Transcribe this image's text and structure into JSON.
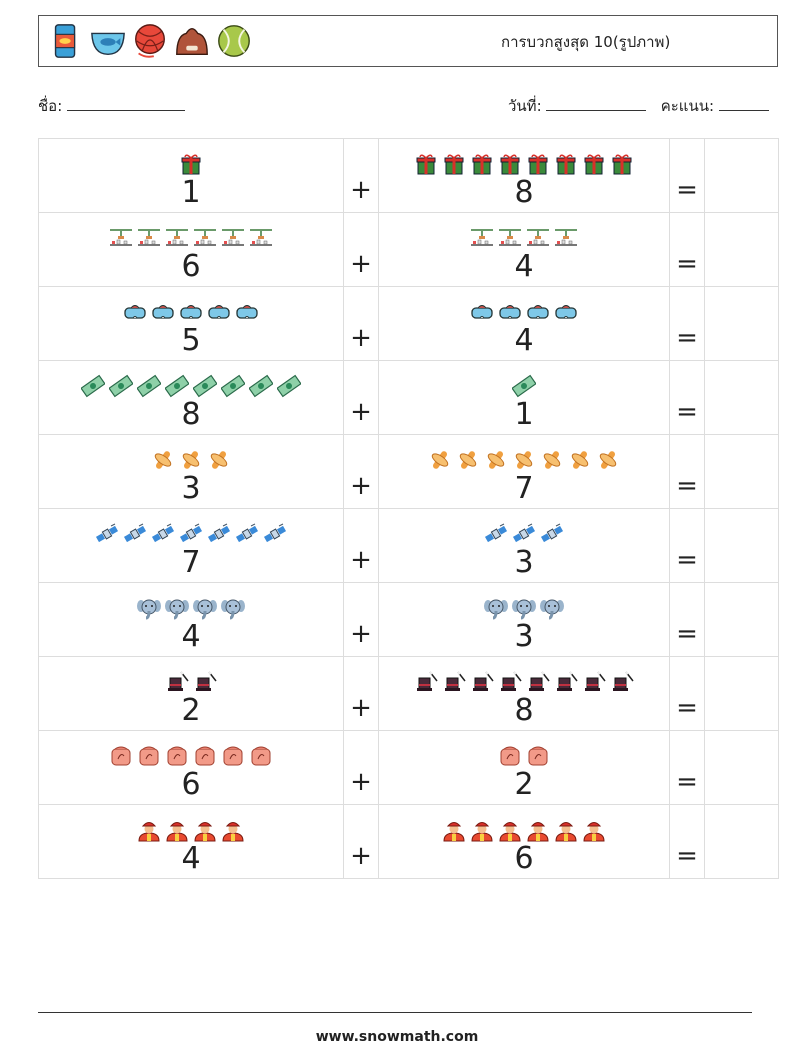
{
  "header": {
    "title": "การบวกสูงสุด 10(รูปภาพ)",
    "icons": [
      "can-icon",
      "fish-bowl-icon",
      "yarn-ball-icon",
      "pet-bed-icon",
      "tennis-ball-icon"
    ]
  },
  "info": {
    "name_label": "ชื่อ:",
    "date_label": "วันที่:",
    "score_label": "คะแนน:"
  },
  "problems": [
    {
      "a": 1,
      "b": 8,
      "icon": "gift-icon",
      "op": "+",
      "eq": "="
    },
    {
      "a": 6,
      "b": 4,
      "icon": "lab-bench-icon",
      "op": "+",
      "eq": "="
    },
    {
      "a": 5,
      "b": 4,
      "icon": "vr-goggles-icon",
      "op": "+",
      "eq": "="
    },
    {
      "a": 8,
      "b": 1,
      "icon": "banknote-icon",
      "op": "+",
      "eq": "="
    },
    {
      "a": 3,
      "b": 7,
      "icon": "pacifier-icon",
      "op": "+",
      "eq": "="
    },
    {
      "a": 7,
      "b": 3,
      "icon": "satellite-icon",
      "op": "+",
      "eq": "="
    },
    {
      "a": 4,
      "b": 3,
      "icon": "elephant-icon",
      "op": "+",
      "eq": "="
    },
    {
      "a": 2,
      "b": 8,
      "icon": "magic-hat-icon",
      "op": "+",
      "eq": "="
    },
    {
      "a": 6,
      "b": 2,
      "icon": "pumpkin-face-icon",
      "op": "+",
      "eq": "="
    },
    {
      "a": 4,
      "b": 6,
      "icon": "firefighter-icon",
      "op": "+",
      "eq": "="
    }
  ],
  "footer": {
    "url": "www.snowmath.com"
  }
}
